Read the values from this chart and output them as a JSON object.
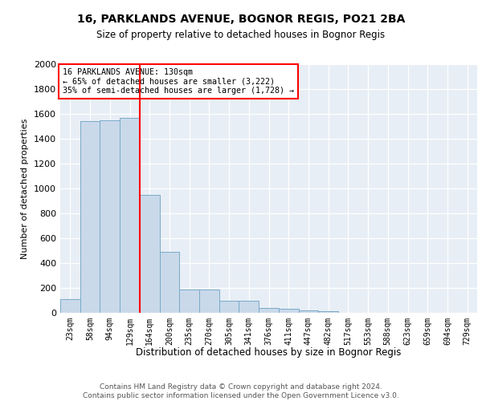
{
  "title1": "16, PARKLANDS AVENUE, BOGNOR REGIS, PO21 2BA",
  "title2": "Size of property relative to detached houses in Bognor Regis",
  "xlabel": "Distribution of detached houses by size in Bognor Regis",
  "ylabel": "Number of detached properties",
  "categories": [
    "23sqm",
    "58sqm",
    "94sqm",
    "129sqm",
    "164sqm",
    "200sqm",
    "235sqm",
    "270sqm",
    "305sqm",
    "341sqm",
    "376sqm",
    "411sqm",
    "447sqm",
    "482sqm",
    "517sqm",
    "553sqm",
    "588sqm",
    "623sqm",
    "659sqm",
    "694sqm",
    "729sqm"
  ],
  "values": [
    110,
    1540,
    1550,
    1570,
    950,
    490,
    185,
    185,
    100,
    100,
    40,
    30,
    20,
    15,
    0,
    0,
    0,
    0,
    0,
    0,
    0
  ],
  "bar_color": "#c9d9ea",
  "bar_edge_color": "#7aaac8",
  "vline_x": 3.5,
  "vline_color": "red",
  "annotation_text": "16 PARKLANDS AVENUE: 130sqm\n← 65% of detached houses are smaller (3,222)\n35% of semi-detached houses are larger (1,728) →",
  "annotation_box_color": "white",
  "annotation_box_edge": "red",
  "ylim": [
    0,
    2000
  ],
  "yticks": [
    0,
    200,
    400,
    600,
    800,
    1000,
    1200,
    1400,
    1600,
    1800,
    2000
  ],
  "background_color": "#e8eef5",
  "footer_text": "Contains HM Land Registry data © Crown copyright and database right 2024.\nContains public sector information licensed under the Open Government Licence v3.0.",
  "title1_fontsize": 10,
  "title2_fontsize": 8.5
}
